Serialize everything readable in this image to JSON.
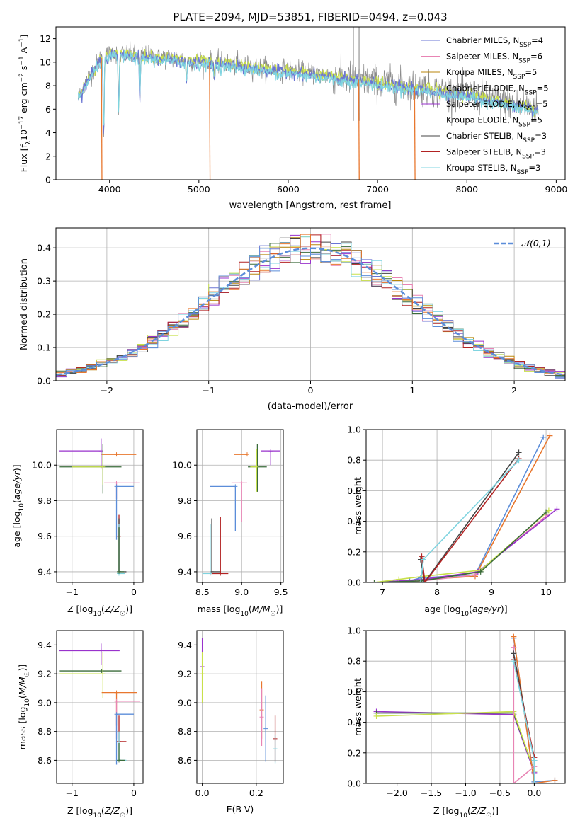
{
  "figure_title": "PLATE=2094, MJD=53851, FIBERID=0494, z=0.043",
  "series_colors": {
    "chabrier_miles": "#6a75d4",
    "salpeter_miles": "#e884b4",
    "kroupa_miles": "#b8860b",
    "chabrier_elodie": "#3a6b3a",
    "salpeter_elodie": "#9932cc",
    "kroupa_elodie": "#c8e04a",
    "chabrier_stelib": "#444444",
    "salpeter_stelib": "#b22222",
    "kroupa_stelib": "#7fd4e0",
    "data": "#8a8a8a",
    "gaussian": "#5b8dd9",
    "blue": "#5b8dd9",
    "orange": "#e8772e"
  },
  "chart_data": [
    {
      "type": "line",
      "title": "PLATE=2094, MJD=53851, FIBERID=0494, z=0.043",
      "xlabel": "wavelength [Angstrom, rest frame]",
      "ylabel": "Flux [fλ10⁻¹⁷ erg cm⁻² s⁻¹ A⁻¹]",
      "xlim": [
        3400,
        9100
      ],
      "ylim": [
        0,
        13
      ],
      "xticks": [
        4000,
        5000,
        6000,
        7000,
        8000,
        9000
      ],
      "yticks": [
        0,
        2,
        4,
        6,
        8,
        10,
        12
      ],
      "legend_position": "top-right",
      "legend": [
        "Chabrier MILES, N_SSP=4",
        "Salpeter MILES, N_SSP=6",
        "Kroupa MILES, N_SSP=5",
        "Chabrier ELODIE, N_SSP=5",
        "Salpeter ELODIE, N_SSP=5",
        "Kroupa ELODIE, N_SSP=5",
        "Chabrier STELIB, N_SSP=3",
        "Salpeter STELIB, N_SSP=3",
        "Kroupa STELIB, N_SSP=3"
      ],
      "continuum": {
        "x": [
          3650,
          3750,
          3900,
          4050,
          4300,
          4600,
          5000,
          5300,
          5600,
          6000,
          6300,
          6600,
          7000,
          7300,
          7500,
          8000,
          8500,
          8800
        ],
        "y": [
          7.0,
          8.5,
          10.3,
          10.8,
          10.6,
          10.4,
          10.1,
          9.9,
          9.6,
          9.3,
          9.0,
          8.7,
          8.3,
          8.0,
          7.8,
          7.3,
          6.5,
          6.0
        ]
      },
      "absorption_features": [
        {
          "x": 3934,
          "y": 4.0
        },
        {
          "x": 4102,
          "y": 5.8
        },
        {
          "x": 4340,
          "y": 7.0
        },
        {
          "x": 4861,
          "y": 8.5
        },
        {
          "x": 5175,
          "y": 8.8
        }
      ],
      "model_dropouts": [
        3915,
        5125,
        6795,
        7420
      ],
      "data_spikes": [
        6730,
        6785,
        6800
      ]
    },
    {
      "type": "line",
      "xlabel": "(data-model)/error",
      "ylabel": "Normed distribution",
      "xlim": [
        -2.5,
        2.5
      ],
      "ylim": [
        0,
        0.46
      ],
      "xticks": [
        -2,
        -1,
        0,
        1,
        2
      ],
      "yticks": [
        0.0,
        0.1,
        0.2,
        0.3,
        0.4
      ],
      "legend_position": "top-right",
      "legend": [
        "𝒩(0,1)"
      ],
      "gaussian": {
        "mean": 0,
        "sigma": 1
      },
      "histogram_bin_width": 0.1,
      "histogram_series": 9
    },
    {
      "type": "scatter",
      "xlabel": "Z [log₁₀(Z/Z☉)]",
      "ylabel": "age  [log₁₀(age/yr)]",
      "xlim": [
        -1.25,
        0.15
      ],
      "ylim": [
        9.34,
        10.2
      ],
      "xticks": [
        -1,
        0
      ],
      "yticks": [
        9.4,
        9.6,
        9.8,
        10.0
      ],
      "errorbars": [
        {
          "x": -0.53,
          "y": 10.08,
          "xerr": [
            0.68,
            0.0
          ],
          "yerr": [
            0.1,
            0.07
          ],
          "color": "#9932cc"
        },
        {
          "x": -0.28,
          "y": 10.06,
          "xerr": [
            0.24,
            0.32
          ],
          "yerr": [
            0.0,
            0.0
          ],
          "color": "#e8772e"
        },
        {
          "x": -0.5,
          "y": 9.99,
          "xerr": [
            0.7,
            0.3
          ],
          "yerr": [
            0.15,
            0.13
          ],
          "color": "#3a6b3a"
        },
        {
          "x": -0.5,
          "y": 9.99,
          "xerr": [
            0.5,
            0.0
          ],
          "yerr": [
            0.1,
            0.08
          ],
          "color": "#c8e04a"
        },
        {
          "x": -0.28,
          "y": 9.9,
          "xerr": [
            0.2,
            0.37
          ],
          "yerr": [
            0.09,
            0.0
          ],
          "color": "#e884b4"
        },
        {
          "x": -0.28,
          "y": 9.88,
          "xerr": [
            0.0,
            0.28
          ],
          "yerr": [
            0.3,
            0.0
          ],
          "color": "#5b8dd9"
        },
        {
          "x": -0.24,
          "y": 9.6,
          "xerr": [
            0.0,
            0.0
          ],
          "yerr": [
            0.2,
            0.12
          ],
          "color": "#b22222"
        },
        {
          "x": -0.24,
          "y": 9.4,
          "xerr": [
            0.0,
            0.12
          ],
          "yerr": [
            0.0,
            0.3
          ],
          "color": "#444444"
        },
        {
          "x": -0.24,
          "y": 9.39,
          "xerr": [
            0.0,
            0.1
          ],
          "yerr": [
            0.0,
            0.28
          ],
          "color": "#7fd4e0"
        },
        {
          "x": -0.24,
          "y": 9.4,
          "xerr": [
            0.0,
            0.08
          ],
          "yerr": [
            0.0,
            0.25
          ],
          "color": "#3a6b3a"
        }
      ]
    },
    {
      "type": "scatter",
      "xlabel": "mass [log₁₀(M/M☉)]",
      "xlim": [
        8.43,
        9.53
      ],
      "ylim": [
        9.34,
        10.2
      ],
      "xticks": [
        8.5,
        9.0,
        9.5
      ],
      "yticks": [
        9.4,
        9.6,
        9.8,
        10.0
      ],
      "errorbars": [
        {
          "x": 9.37,
          "y": 10.08,
          "xerr": [
            0.12,
            0.12
          ],
          "yerr": [
            0.08,
            0.0
          ],
          "color": "#9932cc"
        },
        {
          "x": 9.07,
          "y": 10.06,
          "xerr": [
            0.17,
            0.0
          ],
          "yerr": [
            0.0,
            0.0
          ],
          "color": "#e8772e"
        },
        {
          "x": 9.2,
          "y": 9.99,
          "xerr": [
            0.12,
            0.12
          ],
          "yerr": [
            0.14,
            0.13
          ],
          "color": "#3a6b3a"
        },
        {
          "x": 9.19,
          "y": 9.99,
          "xerr": [
            0.08,
            0.0
          ],
          "yerr": [
            0.14,
            0.1
          ],
          "color": "#c8e04a"
        },
        {
          "x": 9.0,
          "y": 9.9,
          "xerr": [
            0.13,
            0.07
          ],
          "yerr": [
            0.22,
            0.0
          ],
          "color": "#e884b4"
        },
        {
          "x": 8.92,
          "y": 9.88,
          "xerr": [
            0.32,
            0.0
          ],
          "yerr": [
            0.25,
            0.0
          ],
          "color": "#5b8dd9"
        },
        {
          "x": 8.73,
          "y": 9.39,
          "xerr": [
            0.13,
            0.1
          ],
          "yerr": [
            0.0,
            0.32
          ],
          "color": "#b22222"
        },
        {
          "x": 8.62,
          "y": 9.4,
          "xerr": [
            0.0,
            0.1
          ],
          "yerr": [
            0.0,
            0.3
          ],
          "color": "#444444"
        },
        {
          "x": 8.6,
          "y": 9.39,
          "xerr": [
            0.1,
            0.0
          ],
          "yerr": [
            0.0,
            0.28
          ],
          "color": "#7fd4e0"
        }
      ]
    },
    {
      "type": "line",
      "xlabel": "age  [log₁₀(age/yr)]",
      "ylabel": "mass weight",
      "xlim": [
        6.7,
        10.35
      ],
      "ylim": [
        0,
        1.0
      ],
      "xticks": [
        7,
        8,
        9,
        10
      ],
      "yticks": [
        0.0,
        0.2,
        0.4,
        0.6,
        0.8,
        1.0
      ],
      "series": [
        {
          "color": "#5b8dd9",
          "x": [
            6.85,
            7.5,
            7.7,
            8.7,
            9.95
          ],
          "y": [
            0.0,
            0.01,
            0.03,
            0.05,
            0.95
          ]
        },
        {
          "color": "#e8772e",
          "x": [
            6.85,
            7.6,
            7.75,
            8.7,
            10.07
          ],
          "y": [
            0.0,
            0.0,
            0.02,
            0.04,
            0.96
          ]
        },
        {
          "color": "#e884b4",
          "x": [
            6.85,
            7.75,
            8.7,
            10.02
          ],
          "y": [
            0.0,
            0.01,
            0.05,
            0.44
          ]
        },
        {
          "color": "#9932cc",
          "x": [
            6.85,
            7.75,
            8.75,
            10.2
          ],
          "y": [
            0.0,
            0.02,
            0.07,
            0.48
          ]
        },
        {
          "color": "#c8e04a",
          "x": [
            6.85,
            7.3,
            7.75,
            8.8,
            10.05
          ],
          "y": [
            0.0,
            0.02,
            0.04,
            0.08,
            0.47
          ]
        },
        {
          "color": "#3a6b3a",
          "x": [
            6.85,
            7.72,
            8.8,
            10.0
          ],
          "y": [
            0.0,
            0.01,
            0.07,
            0.46
          ]
        },
        {
          "color": "#444444",
          "x": [
            7.7,
            7.77,
            9.5
          ],
          "y": [
            0.15,
            0.0,
            0.85
          ]
        },
        {
          "color": "#b22222",
          "x": [
            7.72,
            7.78,
            9.5
          ],
          "y": [
            0.17,
            0.0,
            0.81
          ]
        },
        {
          "color": "#7fd4e0",
          "x": [
            7.7,
            7.75,
            9.5
          ],
          "y": [
            0.0,
            0.15,
            0.8
          ]
        }
      ]
    },
    {
      "type": "scatter",
      "xlabel": "Z [log₁₀(Z/Z☉)]",
      "ylabel": "mass [log₁₀(M/M☉)]",
      "xlim": [
        -1.25,
        0.15
      ],
      "ylim": [
        8.44,
        9.5
      ],
      "xticks": [
        -1,
        0
      ],
      "yticks": [
        8.6,
        8.8,
        9.0,
        9.2,
        9.4
      ],
      "errorbars": [
        {
          "x": -0.53,
          "y": 9.36,
          "xerr": [
            0.68,
            0.3
          ],
          "yerr": [
            0.1,
            0.05
          ],
          "color": "#9932cc"
        },
        {
          "x": -0.52,
          "y": 9.22,
          "xerr": [
            0.68,
            0.32
          ],
          "yerr": [
            0.0,
            0.0
          ],
          "color": "#3a6b3a"
        },
        {
          "x": -0.5,
          "y": 9.2,
          "xerr": [
            0.7,
            0.0
          ],
          "yerr": [
            0.17,
            0.15
          ],
          "color": "#c8e04a"
        },
        {
          "x": -0.28,
          "y": 9.07,
          "xerr": [
            0.24,
            0.33
          ],
          "yerr": [
            0.23,
            0.0
          ],
          "color": "#e8772e"
        },
        {
          "x": -0.28,
          "y": 9.01,
          "xerr": [
            0.0,
            0.38
          ],
          "yerr": [
            0.26,
            0.0
          ],
          "color": "#e884b4"
        },
        {
          "x": -0.28,
          "y": 8.92,
          "xerr": [
            0.0,
            0.28
          ],
          "yerr": [
            0.35,
            0.0
          ],
          "color": "#5b8dd9"
        },
        {
          "x": -0.24,
          "y": 8.73,
          "xerr": [
            0.0,
            0.12
          ],
          "yerr": [
            0.0,
            0.18
          ],
          "color": "#b22222"
        },
        {
          "x": -0.24,
          "y": 8.6,
          "xerr": [
            0.0,
            0.12
          ],
          "yerr": [
            0.0,
            0.2
          ],
          "color": "#7fd4e0"
        },
        {
          "x": -0.24,
          "y": 8.6,
          "xerr": [
            0.0,
            0.1
          ],
          "yerr": [
            0.0,
            0.12
          ],
          "color": "#3a6b3a"
        }
      ]
    },
    {
      "type": "scatter",
      "xlabel": "E(B-V)",
      "xlim": [
        -0.02,
        0.3
      ],
      "ylim": [
        8.44,
        9.5
      ],
      "xticks": [
        0.0,
        0.2
      ],
      "yticks": [
        8.6,
        8.8,
        9.0,
        9.2,
        9.4
      ],
      "errorbars": [
        {
          "x": 0.0,
          "y": 9.25,
          "yerr": [
            0.25,
            0.2
          ],
          "color": "#9932cc"
        },
        {
          "x": 0.0,
          "y": 9.2,
          "yerr": [
            0.2,
            0.15
          ],
          "color": "#c8e04a"
        },
        {
          "x": 0.22,
          "y": 8.95,
          "yerr": [
            0.2,
            0.2
          ],
          "color": "#e8772e"
        },
        {
          "x": 0.22,
          "y": 8.9,
          "yerr": [
            0.2,
            0.2
          ],
          "color": "#e884b4"
        },
        {
          "x": 0.235,
          "y": 8.82,
          "yerr": [
            0.23,
            0.23
          ],
          "color": "#5b8dd9"
        },
        {
          "x": 0.27,
          "y": 8.75,
          "yerr": [
            0.16,
            0.16
          ],
          "color": "#b22222"
        },
        {
          "x": 0.27,
          "y": 8.68,
          "yerr": [
            0.1,
            0.1
          ],
          "color": "#7fd4e0"
        }
      ]
    },
    {
      "type": "line",
      "xlabel": "Z [log₁₀(Z/Z☉)]",
      "ylabel": "mass weight",
      "xlim": [
        -2.45,
        0.45
      ],
      "ylim": [
        0,
        1.0
      ],
      "xticks": [
        -2.0,
        -1.5,
        -1.0,
        -0.5,
        0.0
      ],
      "yticks": [
        0.0,
        0.2,
        0.4,
        0.6,
        0.8,
        1.0
      ],
      "series": [
        {
          "color": "#9932cc",
          "x": [
            -2.3,
            -0.3,
            0.0
          ],
          "y": [
            0.47,
            0.45,
            0.07
          ]
        },
        {
          "color": "#3a6b3a",
          "x": [
            -2.3,
            -0.3,
            0.0
          ],
          "y": [
            0.46,
            0.46,
            0.08
          ]
        },
        {
          "color": "#c8e04a",
          "x": [
            -2.3,
            -0.3,
            0.0
          ],
          "y": [
            0.44,
            0.47,
            0.08
          ]
        },
        {
          "color": "#5b8dd9",
          "x": [
            -0.3,
            0.0,
            0.3
          ],
          "y": [
            0.95,
            0.01,
            0.02
          ]
        },
        {
          "color": "#e8772e",
          "x": [
            -0.3,
            0.0,
            0.3
          ],
          "y": [
            0.96,
            0.0,
            0.02
          ]
        },
        {
          "color": "#e884b4",
          "x": [
            -0.3,
            -0.3,
            0.0
          ],
          "y": [
            0.89,
            0.0,
            0.11
          ]
        },
        {
          "color": "#444444",
          "x": [
            -0.3,
            0.0,
            0.0
          ],
          "y": [
            0.85,
            0.15,
            0.0
          ]
        },
        {
          "color": "#b22222",
          "x": [
            -0.3,
            0.0,
            0.0
          ],
          "y": [
            0.81,
            0.17,
            0.0
          ]
        },
        {
          "color": "#7fd4e0",
          "x": [
            -0.3,
            0.0,
            0.0
          ],
          "y": [
            0.8,
            0.15,
            0.0
          ]
        }
      ]
    }
  ]
}
